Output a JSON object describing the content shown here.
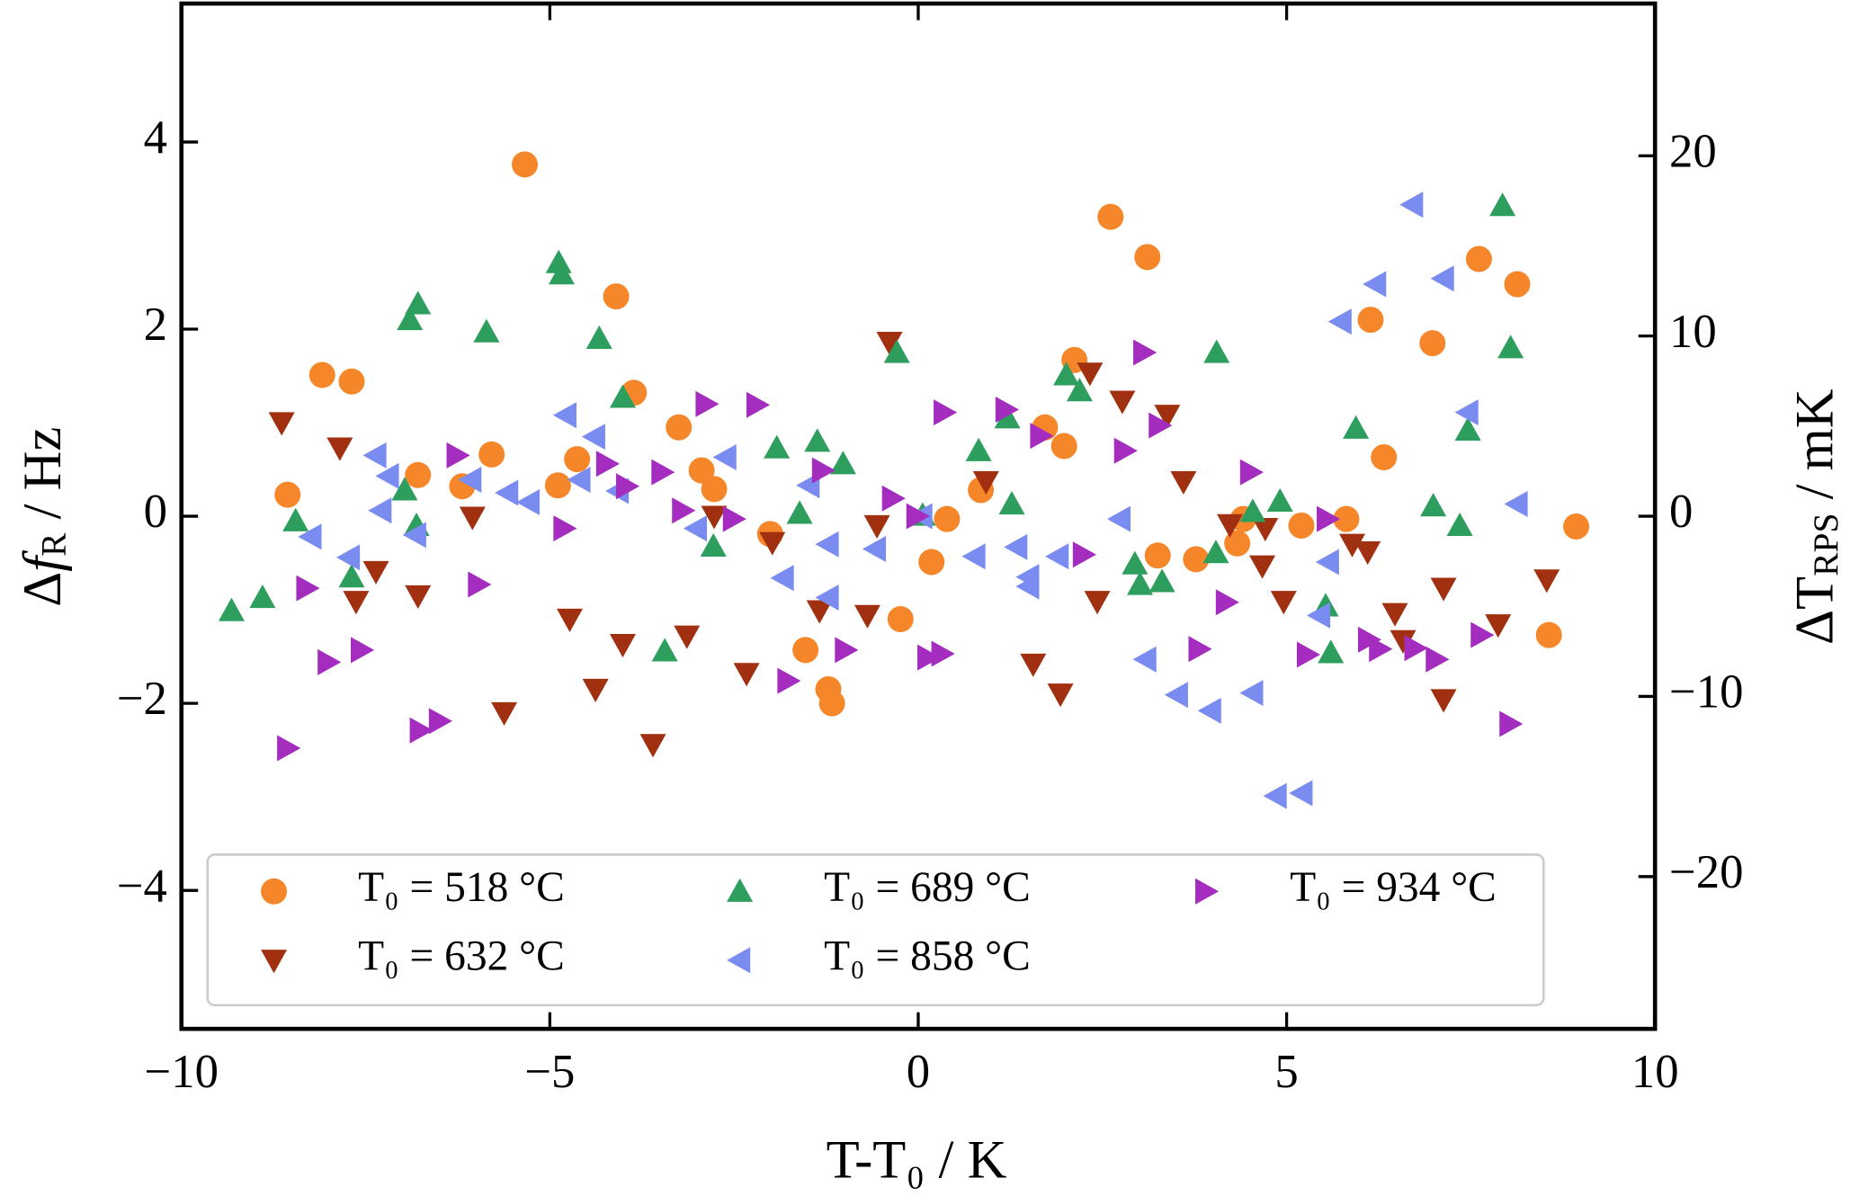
{
  "chart_data": {
    "type": "scatter",
    "xlabel": "T-T₀ / K",
    "ylabel": [
      "Δ",
      "f",
      "R",
      " / Hz"
    ],
    "y2label": [
      "ΔT",
      "RPS",
      " / mK"
    ],
    "xlim": [
      -10,
      10
    ],
    "xticks": [
      {
        "value": -10,
        "label": "−10"
      },
      {
        "value": -5,
        "label": "−5"
      },
      0,
      5,
      10
    ],
    "ylim": [
      -5.48,
      5.48
    ],
    "yticks": [
      {
        "value": -4,
        "label": "−4"
      },
      {
        "value": -2,
        "label": "−2"
      },
      0,
      2,
      4
    ],
    "y2lim": [
      -28.45,
      28.45
    ],
    "y2ticks": [
      {
        "value": -20,
        "label": "−20"
      },
      {
        "value": -10,
        "label": "−10"
      },
      0,
      10,
      20
    ],
    "legend": "lower center",
    "series": [
      {
        "name": "T₀ = 518 °C",
        "color": "#f5872a",
        "marker": "o",
        "x": [
          -8.56,
          -8.09,
          -7.69,
          -6.79,
          -6.19,
          -5.79,
          -5.34,
          -4.89,
          -4.63,
          -4.1,
          -3.86,
          -3.25,
          -2.94,
          -2.77,
          -2.01,
          -1.53,
          -1.22,
          -1.17,
          -0.24,
          0.18,
          0.39,
          0.85,
          1.72,
          1.98,
          2.12,
          2.61,
          3.11,
          3.25,
          3.77,
          4.33,
          4.41,
          5.2,
          5.81,
          6.14,
          6.32,
          6.98,
          7.61,
          8.13,
          8.56,
          8.93
        ],
        "values": [
          0.23,
          1.51,
          1.44,
          0.44,
          0.32,
          0.66,
          3.76,
          0.33,
          0.61,
          2.35,
          1.32,
          0.95,
          0.49,
          0.29,
          -0.19,
          -1.43,
          -1.85,
          -2.0,
          -1.1,
          -0.49,
          -0.03,
          0.28,
          0.95,
          0.75,
          1.67,
          3.2,
          2.77,
          -0.42,
          -0.46,
          -0.29,
          -0.03,
          -0.1,
          -0.03,
          2.1,
          0.63,
          1.85,
          2.75,
          2.48,
          -1.27,
          -0.11
        ]
      },
      {
        "name": "T₀ = 632 °C",
        "color": "#a0300f",
        "marker": "v",
        "x": [
          -8.64,
          -7.85,
          -7.63,
          -7.36,
          -6.79,
          -6.05,
          -5.62,
          -4.73,
          -4.38,
          -4.01,
          -3.6,
          -3.14,
          -2.77,
          -2.33,
          -1.98,
          -1.34,
          -0.69,
          -0.56,
          -0.39,
          0.92,
          1.56,
          1.93,
          2.33,
          2.43,
          2.77,
          3.38,
          3.6,
          4.23,
          4.71,
          4.67,
          4.96,
          5.89,
          6.1,
          6.47,
          6.58,
          7.13,
          7.13,
          7.87,
          8.53
        ],
        "values": [
          1.0,
          0.73,
          -0.91,
          -0.59,
          -0.85,
          -0.01,
          -2.1,
          -1.1,
          -1.85,
          -1.37,
          -2.44,
          -1.28,
          0.0,
          -1.68,
          -0.28,
          -1.01,
          -1.06,
          -0.1,
          1.86,
          0.37,
          -1.58,
          -1.9,
          1.53,
          -0.91,
          1.23,
          1.08,
          0.37,
          -0.09,
          -0.13,
          -0.53,
          -0.91,
          -0.3,
          -0.38,
          -1.04,
          -1.33,
          -0.77,
          -1.96,
          -1.16,
          -0.68
        ]
      },
      {
        "name": "T₀ = 689 °C",
        "color": "#2e9e5e",
        "marker": "^",
        "x": [
          -9.32,
          -8.9,
          -8.45,
          -7.69,
          -6.97,
          -6.9,
          -6.79,
          -6.81,
          -5.86,
          -4.88,
          -4.84,
          -4.33,
          -4.01,
          -3.44,
          -2.78,
          -1.92,
          -1.61,
          -1.37,
          -1.02,
          -0.29,
          0.06,
          0.82,
          1.21,
          1.27,
          2.01,
          2.19,
          2.94,
          3.01,
          3.31,
          4.04,
          4.05,
          4.54,
          4.91,
          5.53,
          5.6,
          5.94,
          6.99,
          7.35,
          7.46,
          7.93,
          8.04
        ],
        "values": [
          -1.01,
          -0.87,
          -0.05,
          -0.65,
          0.28,
          2.1,
          2.27,
          -0.1,
          1.97,
          2.71,
          2.59,
          1.9,
          1.27,
          -1.44,
          -0.32,
          0.73,
          0.03,
          0.8,
          0.56,
          1.75,
          0.01,
          0.7,
          1.05,
          0.13,
          1.51,
          1.34,
          -0.51,
          -0.73,
          -0.7,
          -0.39,
          1.75,
          0.05,
          0.16,
          -0.96,
          -1.46,
          0.94,
          0.11,
          -0.1,
          0.92,
          3.32,
          1.8
        ]
      },
      {
        "name": "T₀ = 858 °C",
        "color": "#7b8cf0",
        "marker": "<",
        "x": [
          -8.24,
          -7.72,
          -7.36,
          -7.19,
          -7.29,
          -6.82,
          -6.07,
          -5.57,
          -5.28,
          -4.78,
          -4.59,
          -4.39,
          -4.07,
          -3.01,
          -2.61,
          -1.83,
          -1.48,
          -1.22,
          -1.22,
          -0.58,
          0.05,
          0.77,
          1.34,
          1.5,
          1.5,
          1.9,
          2.74,
          3.09,
          3.52,
          3.97,
          4.54,
          4.86,
          5.21,
          5.45,
          5.57,
          5.74,
          6.21,
          6.71,
          7.13,
          7.46,
          8.13
        ],
        "values": [
          -0.22,
          -0.44,
          0.65,
          0.43,
          0.06,
          -0.2,
          0.39,
          0.25,
          0.15,
          1.08,
          0.39,
          0.85,
          0.27,
          -0.13,
          0.63,
          -0.66,
          0.33,
          -0.3,
          -0.87,
          -0.35,
          0.0,
          -0.43,
          -0.33,
          -0.65,
          -0.75,
          -0.43,
          -0.03,
          -1.53,
          -1.91,
          -2.08,
          -1.89,
          -2.99,
          -2.96,
          -1.06,
          -0.49,
          2.08,
          2.48,
          3.33,
          2.54,
          1.11,
          0.13
        ]
      },
      {
        "name": "T₀ = 934 °C",
        "color": "#a42cbf",
        "marker": ">",
        "x": [
          -8.56,
          -8.3,
          -8.01,
          -7.56,
          -6.76,
          -6.5,
          -6.26,
          -5.97,
          -4.81,
          -4.23,
          -3.96,
          -3.48,
          -3.2,
          -2.88,
          -2.51,
          -2.19,
          -1.77,
          -1.3,
          -0.99,
          -0.35,
          -0.02,
          0.13,
          0.32,
          0.35,
          1.19,
          1.66,
          2.24,
          2.8,
          3.06,
          3.27,
          3.81,
          4.18,
          4.51,
          5.28,
          5.55,
          6.11,
          6.26,
          6.74,
          7.03,
          7.64,
          8.03
        ],
        "values": [
          -2.48,
          -0.77,
          -1.56,
          -1.43,
          -2.29,
          -2.19,
          0.65,
          -0.73,
          -0.13,
          0.56,
          0.32,
          0.47,
          0.06,
          1.2,
          -0.03,
          1.19,
          -1.76,
          0.49,
          -1.43,
          0.19,
          0.0,
          -1.51,
          -1.47,
          1.11,
          1.14,
          0.86,
          -0.41,
          0.7,
          1.75,
          0.97,
          -1.42,
          -0.92,
          0.47,
          -1.48,
          -0.03,
          -1.32,
          -1.42,
          -1.41,
          -1.53,
          -1.27,
          -2.22
        ]
      }
    ]
  }
}
